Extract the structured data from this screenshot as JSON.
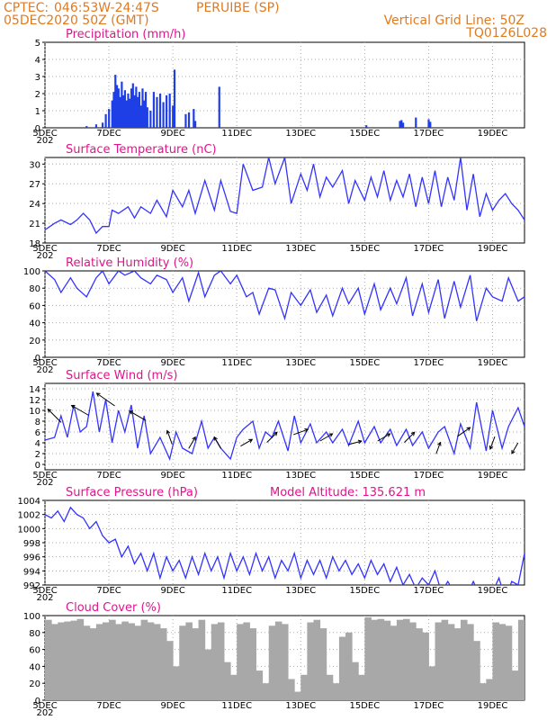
{
  "header": {
    "source": "CPTEC:",
    "location": "046:53W-24:47S",
    "city": "PERUIBE (SP)",
    "init": "05DEC2020 50Z (GMT)",
    "grid_note": "Vertical Grid Line: 50Z",
    "code": "TQ0126L028"
  },
  "colors": {
    "header": "#e07a1f",
    "title": "#e0148c",
    "series": "#3333ff",
    "bars": "#1f3fe6",
    "cloud": "#a8a8a8",
    "grid": "#aaaaaa"
  },
  "x_axis": {
    "tick_labels": [
      "5DEC",
      "7DEC",
      "9DEC",
      "11DEC",
      "13DEC",
      "15DEC",
      "17DEC",
      "19DEC"
    ],
    "tick_days": [
      0,
      2,
      4,
      6,
      8,
      10,
      12,
      14
    ],
    "range_days": [
      0,
      15
    ],
    "year_stub": "202"
  },
  "chart_data": [
    {
      "type": "bar",
      "title": "Precipitation (mm/h)",
      "ylim": [
        0,
        5
      ],
      "yticks": [
        "5",
        "4",
        "3",
        "2",
        "1",
        "0"
      ],
      "grid": true,
      "x_days": [
        1.3,
        1.6,
        1.8,
        1.9,
        2.0,
        2.1,
        2.15,
        2.2,
        2.25,
        2.3,
        2.35,
        2.4,
        2.45,
        2.5,
        2.55,
        2.6,
        2.65,
        2.7,
        2.75,
        2.8,
        2.85,
        2.9,
        2.95,
        3.0,
        3.05,
        3.1,
        3.15,
        3.2,
        3.3,
        3.4,
        3.5,
        3.6,
        3.7,
        3.8,
        3.9,
        4.0,
        4.05,
        4.4,
        4.5,
        4.65,
        4.7,
        5.45,
        10.05,
        11.1,
        11.15,
        11.2,
        11.6,
        12.0,
        12.05
      ],
      "values": [
        0.1,
        0.2,
        0.3,
        0.8,
        1.1,
        1.6,
        2.1,
        3.1,
        2.5,
        2.3,
        1.8,
        2.7,
        1.9,
        2.2,
        1.6,
        2.0,
        1.7,
        2.3,
        2.6,
        1.9,
        2.4,
        1.8,
        2.1,
        1.3,
        2.3,
        1.6,
        2.1,
        1.2,
        1.0,
        2.1,
        1.8,
        2.0,
        1.5,
        1.9,
        2.0,
        1.3,
        3.4,
        0.8,
        0.9,
        1.1,
        0.4,
        2.4,
        0.15,
        0.4,
        0.45,
        0.3,
        0.6,
        0.5,
        0.35
      ]
    },
    {
      "type": "line",
      "title": "Surface Temperature (nC)",
      "ylim": [
        18,
        31
      ],
      "ytick_values": [
        18,
        21,
        24,
        27,
        30
      ],
      "yticks": [
        "18",
        "21",
        "24",
        "27",
        "30"
      ],
      "grid": true,
      "x_days": [
        0.0,
        0.3,
        0.5,
        0.8,
        1.0,
        1.2,
        1.4,
        1.6,
        1.8,
        2.0,
        2.1,
        2.3,
        2.6,
        2.8,
        3.0,
        3.3,
        3.5,
        3.8,
        4.0,
        4.3,
        4.5,
        4.7,
        5.0,
        5.3,
        5.5,
        5.8,
        6.0,
        6.2,
        6.5,
        6.8,
        7.0,
        7.2,
        7.5,
        7.7,
        8.0,
        8.2,
        8.4,
        8.6,
        8.8,
        9.0,
        9.3,
        9.5,
        9.7,
        10.0,
        10.2,
        10.4,
        10.6,
        10.8,
        11.0,
        11.2,
        11.4,
        11.6,
        11.8,
        12.0,
        12.2,
        12.4,
        12.6,
        12.8,
        13.0,
        13.2,
        13.4,
        13.6,
        13.8,
        14.0,
        14.2,
        14.4,
        14.6,
        14.8,
        15.0
      ],
      "values": [
        20.0,
        21.0,
        21.5,
        20.8,
        21.5,
        22.5,
        21.5,
        19.5,
        20.5,
        20.5,
        23.0,
        22.5,
        23.5,
        21.8,
        23.5,
        22.5,
        24.5,
        22.0,
        26.0,
        23.5,
        26.0,
        22.5,
        27.5,
        23.0,
        27.5,
        22.8,
        22.5,
        30.0,
        26.0,
        26.5,
        31.0,
        27.0,
        31.0,
        24.0,
        28.5,
        26.0,
        30.0,
        25.0,
        28.0,
        26.5,
        29.0,
        24.0,
        27.5,
        24.5,
        28.0,
        25.0,
        29.0,
        24.5,
        27.5,
        25.0,
        28.5,
        23.5,
        28.0,
        24.0,
        29.0,
        23.5,
        28.0,
        24.5,
        31.0,
        23.0,
        28.5,
        22.0,
        25.5,
        23.0,
        24.5,
        25.5,
        24.0,
        23.0,
        21.5
      ]
    },
    {
      "type": "line",
      "title": "Relative Humidity (%)",
      "ylim": [
        0,
        100
      ],
      "ytick_values": [
        0,
        20,
        40,
        60,
        80,
        100
      ],
      "yticks": [
        "0",
        "20",
        "40",
        "60",
        "80",
        "100"
      ],
      "grid": true,
      "x_days": [
        0.0,
        0.3,
        0.5,
        0.8,
        1.0,
        1.3,
        1.6,
        1.8,
        2.0,
        2.3,
        2.5,
        2.8,
        3.0,
        3.3,
        3.5,
        3.8,
        4.0,
        4.3,
        4.5,
        4.8,
        5.0,
        5.3,
        5.5,
        5.8,
        6.0,
        6.3,
        6.5,
        6.7,
        7.0,
        7.2,
        7.5,
        7.7,
        8.0,
        8.3,
        8.5,
        8.8,
        9.0,
        9.3,
        9.5,
        9.8,
        10.0,
        10.3,
        10.5,
        10.8,
        11.0,
        11.3,
        11.5,
        11.8,
        12.0,
        12.3,
        12.5,
        12.8,
        13.0,
        13.3,
        13.5,
        13.8,
        14.0,
        14.3,
        14.5,
        14.8,
        15.0
      ],
      "values": [
        100,
        90,
        75,
        92,
        80,
        70,
        92,
        100,
        85,
        100,
        95,
        100,
        92,
        85,
        95,
        90,
        75,
        92,
        65,
        98,
        70,
        95,
        100,
        85,
        95,
        70,
        75,
        50,
        80,
        78,
        45,
        75,
        60,
        78,
        52,
        72,
        48,
        80,
        62,
        80,
        50,
        85,
        55,
        80,
        62,
        92,
        48,
        85,
        52,
        90,
        45,
        88,
        58,
        95,
        42,
        80,
        70,
        65,
        92,
        65,
        70
      ]
    },
    {
      "type": "line",
      "title": "Surface Wind (m/s)",
      "ylim": [
        -1,
        15
      ],
      "ytick_values": [
        0,
        2,
        4,
        6,
        8,
        10,
        12,
        14
      ],
      "yticks": [
        "0",
        "2",
        "4",
        "6",
        "8",
        "10",
        "12",
        "14"
      ],
      "grid": true,
      "x_days": [
        0.0,
        0.3,
        0.5,
        0.7,
        0.9,
        1.1,
        1.3,
        1.5,
        1.7,
        1.9,
        2.1,
        2.3,
        2.5,
        2.7,
        2.9,
        3.1,
        3.3,
        3.6,
        3.9,
        4.1,
        4.3,
        4.6,
        4.9,
        5.1,
        5.3,
        5.5,
        5.8,
        6.0,
        6.2,
        6.5,
        6.7,
        6.9,
        7.1,
        7.3,
        7.6,
        7.8,
        8.0,
        8.3,
        8.5,
        8.8,
        9.0,
        9.3,
        9.5,
        9.8,
        10.0,
        10.3,
        10.5,
        10.8,
        11.0,
        11.3,
        11.5,
        11.8,
        12.0,
        12.3,
        12.5,
        12.8,
        13.0,
        13.3,
        13.5,
        13.8,
        14.0,
        14.3,
        14.5,
        14.8,
        15.0
      ],
      "values": [
        4.5,
        5.0,
        9.0,
        5.0,
        11.0,
        6.0,
        7.0,
        13.5,
        6.0,
        12.0,
        4.0,
        10.0,
        6.0,
        11.0,
        3.0,
        9.0,
        2.0,
        5.0,
        1.0,
        6.0,
        3.0,
        2.0,
        8.0,
        3.0,
        5.0,
        3.0,
        1.0,
        5.0,
        6.5,
        8.0,
        3.0,
        6.0,
        5.0,
        8.0,
        2.5,
        9.0,
        4.0,
        7.5,
        4.0,
        6.0,
        4.0,
        6.5,
        3.5,
        8.0,
        4.0,
        7.0,
        4.0,
        6.5,
        3.5,
        6.5,
        3.5,
        6.0,
        3.0,
        6.0,
        7.0,
        2.0,
        7.5,
        3.0,
        11.5,
        2.5,
        10.0,
        3.0,
        7.0,
        10.5,
        7.0
      ],
      "wind_barbs": [
        {
          "x_day": 0.3,
          "speed": 9,
          "dir_deg": 315
        },
        {
          "x_day": 1.1,
          "speed": 10,
          "dir_deg": 300
        },
        {
          "x_day": 1.9,
          "speed": 12,
          "dir_deg": 305
        },
        {
          "x_day": 2.9,
          "speed": 9,
          "dir_deg": 300
        },
        {
          "x_day": 3.9,
          "speed": 5,
          "dir_deg": 340
        },
        {
          "x_day": 4.6,
          "speed": 4,
          "dir_deg": 30
        },
        {
          "x_day": 5.4,
          "speed": 4,
          "dir_deg": 330
        },
        {
          "x_day": 6.3,
          "speed": 4,
          "dir_deg": 60
        },
        {
          "x_day": 7.1,
          "speed": 5,
          "dir_deg": 45
        },
        {
          "x_day": 8.0,
          "speed": 6,
          "dir_deg": 70
        },
        {
          "x_day": 8.8,
          "speed": 5,
          "dir_deg": 60
        },
        {
          "x_day": 9.7,
          "speed": 4,
          "dir_deg": 75
        },
        {
          "x_day": 10.6,
          "speed": 5,
          "dir_deg": 60
        },
        {
          "x_day": 11.4,
          "speed": 5,
          "dir_deg": 45
        },
        {
          "x_day": 12.3,
          "speed": 3,
          "dir_deg": 20
        },
        {
          "x_day": 13.1,
          "speed": 6,
          "dir_deg": 55
        },
        {
          "x_day": 14.0,
          "speed": 4,
          "dir_deg": 200
        },
        {
          "x_day": 14.7,
          "speed": 3,
          "dir_deg": 210
        }
      ]
    },
    {
      "type": "line",
      "title": "Surface Pressure (hPa)",
      "model_altitude": "Model Altitude: 135.621 m",
      "ylim": [
        992,
        1004
      ],
      "ytick_values": [
        992,
        994,
        996,
        998,
        1000,
        1002,
        1004
      ],
      "yticks": [
        "992",
        "994",
        "996",
        "998",
        "1000",
        "1002",
        "1004"
      ],
      "grid": true,
      "x_days": [
        0.0,
        0.2,
        0.4,
        0.6,
        0.8,
        1.0,
        1.2,
        1.4,
        1.6,
        1.8,
        2.0,
        2.2,
        2.4,
        2.6,
        2.8,
        3.0,
        3.2,
        3.4,
        3.6,
        3.8,
        4.0,
        4.2,
        4.4,
        4.6,
        4.8,
        5.0,
        5.2,
        5.4,
        5.6,
        5.8,
        6.0,
        6.2,
        6.4,
        6.6,
        6.8,
        7.0,
        7.2,
        7.4,
        7.6,
        7.8,
        8.0,
        8.2,
        8.4,
        8.6,
        8.8,
        9.0,
        9.2,
        9.4,
        9.6,
        9.8,
        10.0,
        10.2,
        10.4,
        10.6,
        10.8,
        11.0,
        11.2,
        11.4,
        11.6,
        11.8,
        12.0,
        12.2,
        12.4,
        12.6,
        12.8,
        13.0,
        13.2,
        13.4,
        13.6,
        13.8,
        14.0,
        14.2,
        14.4,
        14.6,
        14.8,
        15.0
      ],
      "values": [
        1002,
        1001.5,
        1002.5,
        1001,
        1003,
        1002,
        1001.5,
        1000,
        1001,
        999,
        998,
        998.5,
        996,
        997.5,
        995,
        996.5,
        994,
        996.5,
        993,
        996,
        994,
        995.5,
        993,
        996,
        993.5,
        996.5,
        994,
        996,
        993,
        996.5,
        994,
        996,
        993.5,
        996.5,
        994,
        996,
        993,
        995.5,
        994,
        996.5,
        993,
        995.5,
        993.5,
        995.5,
        993,
        996,
        994,
        995.5,
        993.5,
        995,
        993,
        995.5,
        993.5,
        995,
        992.5,
        994.5,
        992,
        993.5,
        991.5,
        993,
        992,
        994,
        991,
        992.5,
        991,
        992,
        990.5,
        992.5,
        990.5,
        992,
        991,
        993,
        990,
        992.5,
        992,
        996.5
      ]
    },
    {
      "type": "bar",
      "title": "Cloud Cover (%)",
      "ylim": [
        0,
        100
      ],
      "yticks": [
        "100",
        "80",
        "60",
        "40",
        "20",
        "0"
      ],
      "grid": true,
      "x_days": [
        0.0,
        0.2,
        0.4,
        0.6,
        0.8,
        1.0,
        1.2,
        1.4,
        1.6,
        1.8,
        2.0,
        2.2,
        2.4,
        2.6,
        2.8,
        3.0,
        3.2,
        3.4,
        3.6,
        3.8,
        4.0,
        4.2,
        4.4,
        4.6,
        4.8,
        5.0,
        5.2,
        5.4,
        5.6,
        5.8,
        6.0,
        6.2,
        6.4,
        6.6,
        6.8,
        7.0,
        7.2,
        7.4,
        7.6,
        7.8,
        8.0,
        8.2,
        8.4,
        8.6,
        8.8,
        9.0,
        9.2,
        9.4,
        9.6,
        9.8,
        10.0,
        10.2,
        10.4,
        10.6,
        10.8,
        11.0,
        11.2,
        11.4,
        11.6,
        11.8,
        12.0,
        12.2,
        12.4,
        12.6,
        12.8,
        13.0,
        13.2,
        13.4,
        13.6,
        13.8,
        14.0,
        14.2,
        14.4,
        14.6,
        14.8
      ],
      "values": [
        95,
        90,
        92,
        93,
        94,
        96,
        88,
        85,
        90,
        92,
        95,
        90,
        93,
        91,
        88,
        95,
        92,
        90,
        85,
        70,
        40,
        88,
        92,
        85,
        95,
        60,
        90,
        92,
        45,
        30,
        90,
        92,
        85,
        35,
        20,
        88,
        93,
        90,
        25,
        10,
        30,
        92,
        95,
        85,
        30,
        20,
        75,
        80,
        45,
        30,
        98,
        95,
        96,
        94,
        88,
        95,
        96,
        92,
        85,
        80,
        40,
        92,
        95,
        90,
        85,
        95,
        90,
        70,
        20,
        25,
        92,
        90,
        88,
        35,
        95
      ]
    }
  ]
}
